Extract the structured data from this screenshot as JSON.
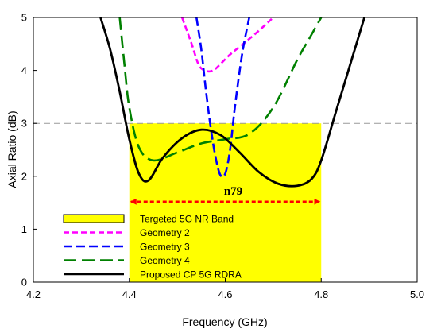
{
  "chart_data": {
    "type": "line",
    "xlabel": "Frequency (GHz)",
    "ylabel": "Axial Ratio (dB)",
    "xlim": [
      4.2,
      5.0
    ],
    "ylim": [
      0,
      5
    ],
    "x_ticks": [
      "4.2",
      "4.4",
      "4.6",
      "4.8",
      "5.0"
    ],
    "y_ticks": [
      "0",
      "1",
      "2",
      "3",
      "4",
      "5"
    ],
    "grid": false,
    "legend_position": "bottom-left",
    "reference_line": {
      "y": 3,
      "style": "dashed",
      "color": "#999999"
    },
    "band": {
      "name": "Tergeted 5G NR Band",
      "x_start": 4.4,
      "x_end": 4.8,
      "y_top": 3,
      "color": "#ffff00",
      "label": "n79",
      "arrow_y": 1.52,
      "arrow_color": "#ff0000"
    },
    "series": [
      {
        "name": "Geometry 2",
        "color": "#ff00ff",
        "dash": "short",
        "x": [
          4.51,
          4.53,
          4.545,
          4.56,
          4.575,
          4.59,
          4.61,
          4.64,
          4.67,
          4.7
        ],
        "y": [
          5.0,
          4.5,
          4.1,
          3.99,
          4.0,
          4.12,
          4.3,
          4.52,
          4.75,
          5.0
        ]
      },
      {
        "name": "Geometry 3",
        "color": "#0000ff",
        "dash": "medium",
        "x": [
          4.54,
          4.55,
          4.56,
          4.57,
          4.58,
          4.59,
          4.6,
          4.61,
          4.62,
          4.635,
          4.65
        ],
        "y": [
          5.0,
          4.4,
          3.6,
          2.9,
          2.35,
          2.02,
          2.05,
          2.5,
          3.3,
          4.3,
          5.0
        ]
      },
      {
        "name": "Geometry 4",
        "color": "#008000",
        "dash": "long",
        "x": [
          4.38,
          4.39,
          4.4,
          4.42,
          4.45,
          4.5,
          4.55,
          4.6,
          4.65,
          4.7,
          4.75,
          4.775,
          4.8
        ],
        "y": [
          5.0,
          4.1,
          3.3,
          2.55,
          2.3,
          2.45,
          2.62,
          2.7,
          2.8,
          3.3,
          4.2,
          4.6,
          5.0
        ]
      },
      {
        "name": "Proposed CP 5G RDRA",
        "color": "#000000",
        "dash": "solid",
        "x": [
          4.34,
          4.36,
          4.38,
          4.4,
          4.42,
          4.44,
          4.47,
          4.51,
          4.55,
          4.59,
          4.63,
          4.67,
          4.71,
          4.75,
          4.78,
          4.8,
          4.83,
          4.86,
          4.89
        ],
        "y": [
          5.0,
          4.4,
          3.6,
          2.7,
          2.05,
          1.92,
          2.35,
          2.72,
          2.88,
          2.78,
          2.45,
          2.08,
          1.86,
          1.82,
          1.95,
          2.3,
          3.2,
          4.1,
          5.0
        ]
      }
    ]
  }
}
